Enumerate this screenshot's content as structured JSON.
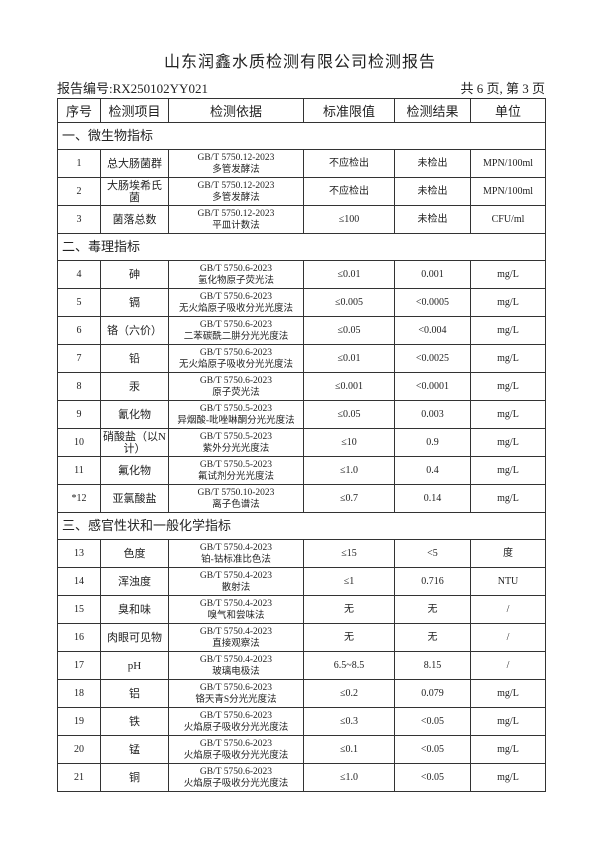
{
  "header": {
    "title": "山东润鑫水质检测有限公司检测报告",
    "report_no": "报告编号:RX250102YY021",
    "page_info": "共 6 页, 第 3 页"
  },
  "table": {
    "columns": [
      "序号",
      "检测项目",
      "检测依据",
      "标准限值",
      "检测结果",
      "单位"
    ],
    "sections": [
      {
        "title": "一、微生物指标",
        "rows": [
          {
            "no": "1",
            "item": "总大肠菌群",
            "standard": "GB/T 5750.12-2023",
            "method": "多管发酵法",
            "limit": "不应检出",
            "result": "未检出",
            "unit": "MPN/100ml"
          },
          {
            "no": "2",
            "item": "大肠埃希氏菌",
            "standard": "GB/T 5750.12-2023",
            "method": "多管发酵法",
            "limit": "不应检出",
            "result": "未检出",
            "unit": "MPN/100ml"
          },
          {
            "no": "3",
            "item": "菌落总数",
            "standard": "GB/T 5750.12-2023",
            "method": "平皿计数法",
            "limit": "≤100",
            "result": "未检出",
            "unit": "CFU/ml"
          }
        ]
      },
      {
        "title": "二、毒理指标",
        "rows": [
          {
            "no": "4",
            "item": "砷",
            "standard": "GB/T 5750.6-2023",
            "method": "氢化物原子荧光法",
            "limit": "≤0.01",
            "result": "0.001",
            "unit": "mg/L"
          },
          {
            "no": "5",
            "item": "镉",
            "standard": "GB/T 5750.6-2023",
            "method": "无火焰原子吸收分光光度法",
            "limit": "≤0.005",
            "result": "<0.0005",
            "unit": "mg/L"
          },
          {
            "no": "6",
            "item": "铬（六价）",
            "standard": "GB/T 5750.6-2023",
            "method": "二苯碳酰二肼分光光度法",
            "limit": "≤0.05",
            "result": "<0.004",
            "unit": "mg/L"
          },
          {
            "no": "7",
            "item": "铅",
            "standard": "GB/T 5750.6-2023",
            "method": "无火焰原子吸收分光光度法",
            "limit": "≤0.01",
            "result": "<0.0025",
            "unit": "mg/L"
          },
          {
            "no": "8",
            "item": "汞",
            "standard": "GB/T 5750.6-2023",
            "method": "原子荧光法",
            "limit": "≤0.001",
            "result": "<0.0001",
            "unit": "mg/L"
          },
          {
            "no": "9",
            "item": "氰化物",
            "standard": "GB/T 5750.5-2023",
            "method": "异烟酸-吡唑啉酮分光光度法",
            "limit": "≤0.05",
            "result": "0.003",
            "unit": "mg/L"
          },
          {
            "no": "10",
            "item": "硝酸盐（以N计）",
            "standard": "GB/T 5750.5-2023",
            "method": "紫外分光光度法",
            "limit": "≤10",
            "result": "0.9",
            "unit": "mg/L"
          },
          {
            "no": "11",
            "item": "氟化物",
            "standard": "GB/T 5750.5-2023",
            "method": "氟试剂分光光度法",
            "limit": "≤1.0",
            "result": "0.4",
            "unit": "mg/L"
          },
          {
            "no": "*12",
            "item": "亚氯酸盐",
            "standard": "GB/T 5750.10-2023",
            "method": "离子色谱法",
            "limit": "≤0.7",
            "result": "0.14",
            "unit": "mg/L"
          }
        ]
      },
      {
        "title": "三、感官性状和一般化学指标",
        "rows": [
          {
            "no": "13",
            "item": "色度",
            "standard": "GB/T 5750.4-2023",
            "method": "铂-钴标准比色法",
            "limit": "≤15",
            "result": "<5",
            "unit": "度"
          },
          {
            "no": "14",
            "item": "浑浊度",
            "standard": "GB/T 5750.4-2023",
            "method": "散射法",
            "limit": "≤1",
            "result": "0.716",
            "unit": "NTU"
          },
          {
            "no": "15",
            "item": "臭和味",
            "standard": "GB/T 5750.4-2023",
            "method": "嗅气和尝味法",
            "limit": "无",
            "result": "无",
            "unit": "/"
          },
          {
            "no": "16",
            "item": "肉眼可见物",
            "standard": "GB/T 5750.4-2023",
            "method": "直接观察法",
            "limit": "无",
            "result": "无",
            "unit": "/"
          },
          {
            "no": "17",
            "item": "pH",
            "standard": "GB/T 5750.4-2023",
            "method": "玻璃电极法",
            "limit": "6.5~8.5",
            "result": "8.15",
            "unit": "/"
          },
          {
            "no": "18",
            "item": "铝",
            "standard": "GB/T 5750.6-2023",
            "method": "铬天青S分光光度法",
            "limit": "≤0.2",
            "result": "0.079",
            "unit": "mg/L"
          },
          {
            "no": "19",
            "item": "铁",
            "standard": "GB/T 5750.6-2023",
            "method": "火焰原子吸收分光光度法",
            "limit": "≤0.3",
            "result": "<0.05",
            "unit": "mg/L"
          },
          {
            "no": "20",
            "item": "锰",
            "standard": "GB/T 5750.6-2023",
            "method": "火焰原子吸收分光光度法",
            "limit": "≤0.1",
            "result": "<0.05",
            "unit": "mg/L"
          },
          {
            "no": "21",
            "item": "铜",
            "standard": "GB/T 5750.6-2023",
            "method": "火焰原子吸收分光光度法",
            "limit": "≤1.0",
            "result": "<0.05",
            "unit": "mg/L"
          }
        ]
      }
    ]
  }
}
